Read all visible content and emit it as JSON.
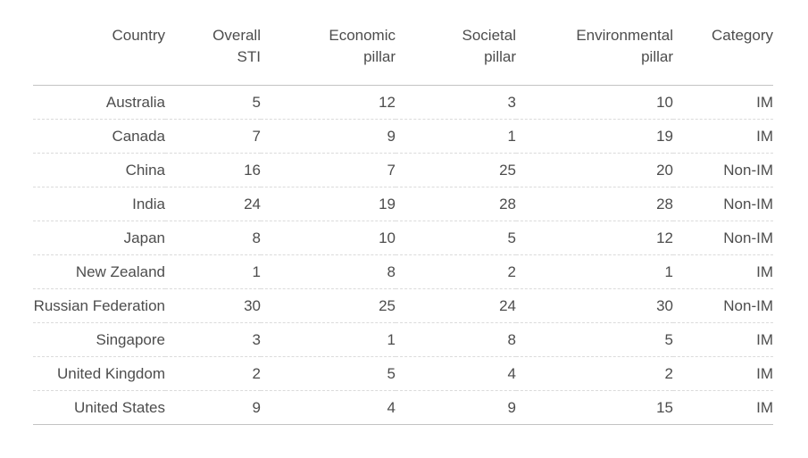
{
  "chart_data": {
    "type": "table",
    "title": "",
    "columns": [
      "Country",
      "Overall STI",
      "Economic pillar",
      "Societal pillar",
      "Environmental pillar",
      "Category"
    ],
    "header_display": [
      "Country",
      "Overall\nSTI",
      "Economic\npillar",
      "Societal\npillar",
      "Environmental\npillar",
      "Category"
    ],
    "rows": [
      [
        "Australia",
        "5",
        "12",
        "3",
        "10",
        "IM"
      ],
      [
        "Canada",
        "7",
        "9",
        "1",
        "19",
        "IM"
      ],
      [
        "China",
        "16",
        "7",
        "25",
        "20",
        "Non-IM"
      ],
      [
        "India",
        "24",
        "19",
        "28",
        "28",
        "Non-IM"
      ],
      [
        "Japan",
        "8",
        "10",
        "5",
        "12",
        "Non-IM"
      ],
      [
        "New Zealand",
        "1",
        "8",
        "2",
        "1",
        "IM"
      ],
      [
        "Russian Federation",
        "30",
        "25",
        "24",
        "30",
        "Non-IM"
      ],
      [
        "Singapore",
        "3",
        "1",
        "8",
        "5",
        "IM"
      ],
      [
        "United Kingdom",
        "2",
        "5",
        "4",
        "2",
        "IM"
      ],
      [
        "United States",
        "9",
        "4",
        "9",
        "15",
        "IM"
      ]
    ],
    "category_values": [
      "IM",
      "Non-IM"
    ],
    "layout_hints": {
      "alignment": "right",
      "header_rule": "solid",
      "row_rules": "dashed",
      "bottom_rule": "solid"
    }
  },
  "colors": {
    "text": "#4d4d4d",
    "solid_rule": "#c3c3c3",
    "dashed_rule": "#dbdbdb",
    "background": "#ffffff"
  }
}
